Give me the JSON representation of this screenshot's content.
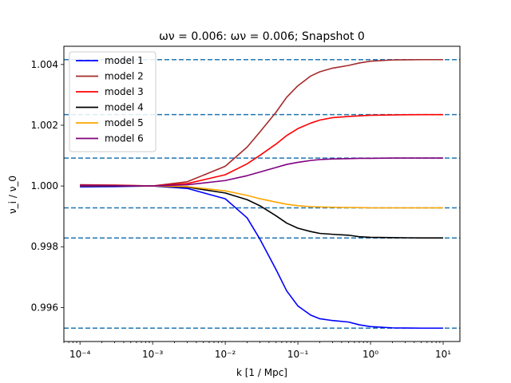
{
  "chart_data": {
    "type": "line",
    "title": "ων = 0.006: ων = 0.006; Snapshot 0",
    "xlabel": "k [1 / Mpc]",
    "ylabel": "ν_i / ν_0",
    "xscale": "log",
    "xlim": [
      6e-05,
      17
    ],
    "ylim": [
      0.99488,
      1.0046
    ],
    "xticks": [
      {
        "value": 0.0001,
        "label": "10⁻⁴"
      },
      {
        "value": 0.001,
        "label": "10⁻³"
      },
      {
        "value": 0.01,
        "label": "10⁻²"
      },
      {
        "value": 0.1,
        "label": "10⁻¹"
      },
      {
        "value": 1,
        "label": "10⁰"
      },
      {
        "value": 10,
        "label": "10¹"
      }
    ],
    "yticks": [
      {
        "value": 0.996,
        "label": "0.996"
      },
      {
        "value": 0.998,
        "label": "0.998"
      },
      {
        "value": 1.0,
        "label": "1.000"
      },
      {
        "value": 1.002,
        "label": "1.002"
      },
      {
        "value": 1.004,
        "label": "1.004"
      }
    ],
    "grid": false,
    "legend_position": "top-left",
    "reference_lines": {
      "style": "dashed",
      "color": "#1f77b4",
      "y": [
        1.00416,
        1.00235,
        1.00092,
        0.99928,
        0.99829,
        0.99532
      ]
    },
    "x": [
      0.0001,
      0.0003,
      0.001,
      0.003,
      0.01,
      0.02,
      0.03,
      0.05,
      0.07,
      0.1,
      0.15,
      0.2,
      0.3,
      0.5,
      0.7,
      1,
      2,
      5,
      10
    ],
    "series": [
      {
        "name": "model 1",
        "color": "#0000ff",
        "values": [
          0.99997,
          0.99998,
          1.0,
          0.99992,
          0.99958,
          0.99895,
          0.99825,
          0.99725,
          0.99655,
          0.99605,
          0.99575,
          0.99563,
          0.99557,
          0.99552,
          0.99543,
          0.99537,
          0.99533,
          0.99532,
          0.99532
        ]
      },
      {
        "name": "model 2",
        "color": "#a52a2a",
        "values": [
          1.00004,
          1.00003,
          1.0,
          1.00014,
          1.00065,
          1.00128,
          1.00178,
          1.00243,
          1.00292,
          1.0033,
          1.00362,
          1.00376,
          1.00388,
          1.00397,
          1.00405,
          1.00411,
          1.00415,
          1.00416,
          1.00416
        ]
      },
      {
        "name": "model 3",
        "color": "#ff0000",
        "values": [
          1.00003,
          1.00002,
          1.0,
          1.00008,
          1.00037,
          1.00073,
          1.00101,
          1.00138,
          1.00166,
          1.00189,
          1.00207,
          1.00217,
          1.00225,
          1.00229,
          1.00231,
          1.00233,
          1.00234,
          1.00235,
          1.00235
        ]
      },
      {
        "name": "model 4",
        "color": "#000000",
        "values": [
          1.0,
          1.0,
          1.0,
          0.99996,
          0.99977,
          0.99955,
          0.99935,
          0.99902,
          0.99878,
          0.99861,
          0.9985,
          0.99844,
          0.99841,
          0.99838,
          0.99833,
          0.99831,
          0.9983,
          0.99829,
          0.99829
        ]
      },
      {
        "name": "model 5",
        "color": "#ffa500",
        "values": [
          1.00001,
          1.00001,
          1.0,
          0.99998,
          0.99984,
          0.99969,
          0.99958,
          0.99947,
          0.9994,
          0.99935,
          0.99932,
          0.99931,
          0.9993,
          0.99929,
          0.99929,
          0.99928,
          0.99928,
          0.99928,
          0.99928
        ]
      },
      {
        "name": "model 6",
        "color": "#800080",
        "values": [
          1.00002,
          1.00001,
          1.0,
          1.00004,
          1.00018,
          1.00034,
          1.00046,
          1.00061,
          1.00071,
          1.00078,
          1.00084,
          1.00087,
          1.00089,
          1.0009,
          1.00091,
          1.00091,
          1.00092,
          1.00092,
          1.00092
        ]
      }
    ]
  }
}
